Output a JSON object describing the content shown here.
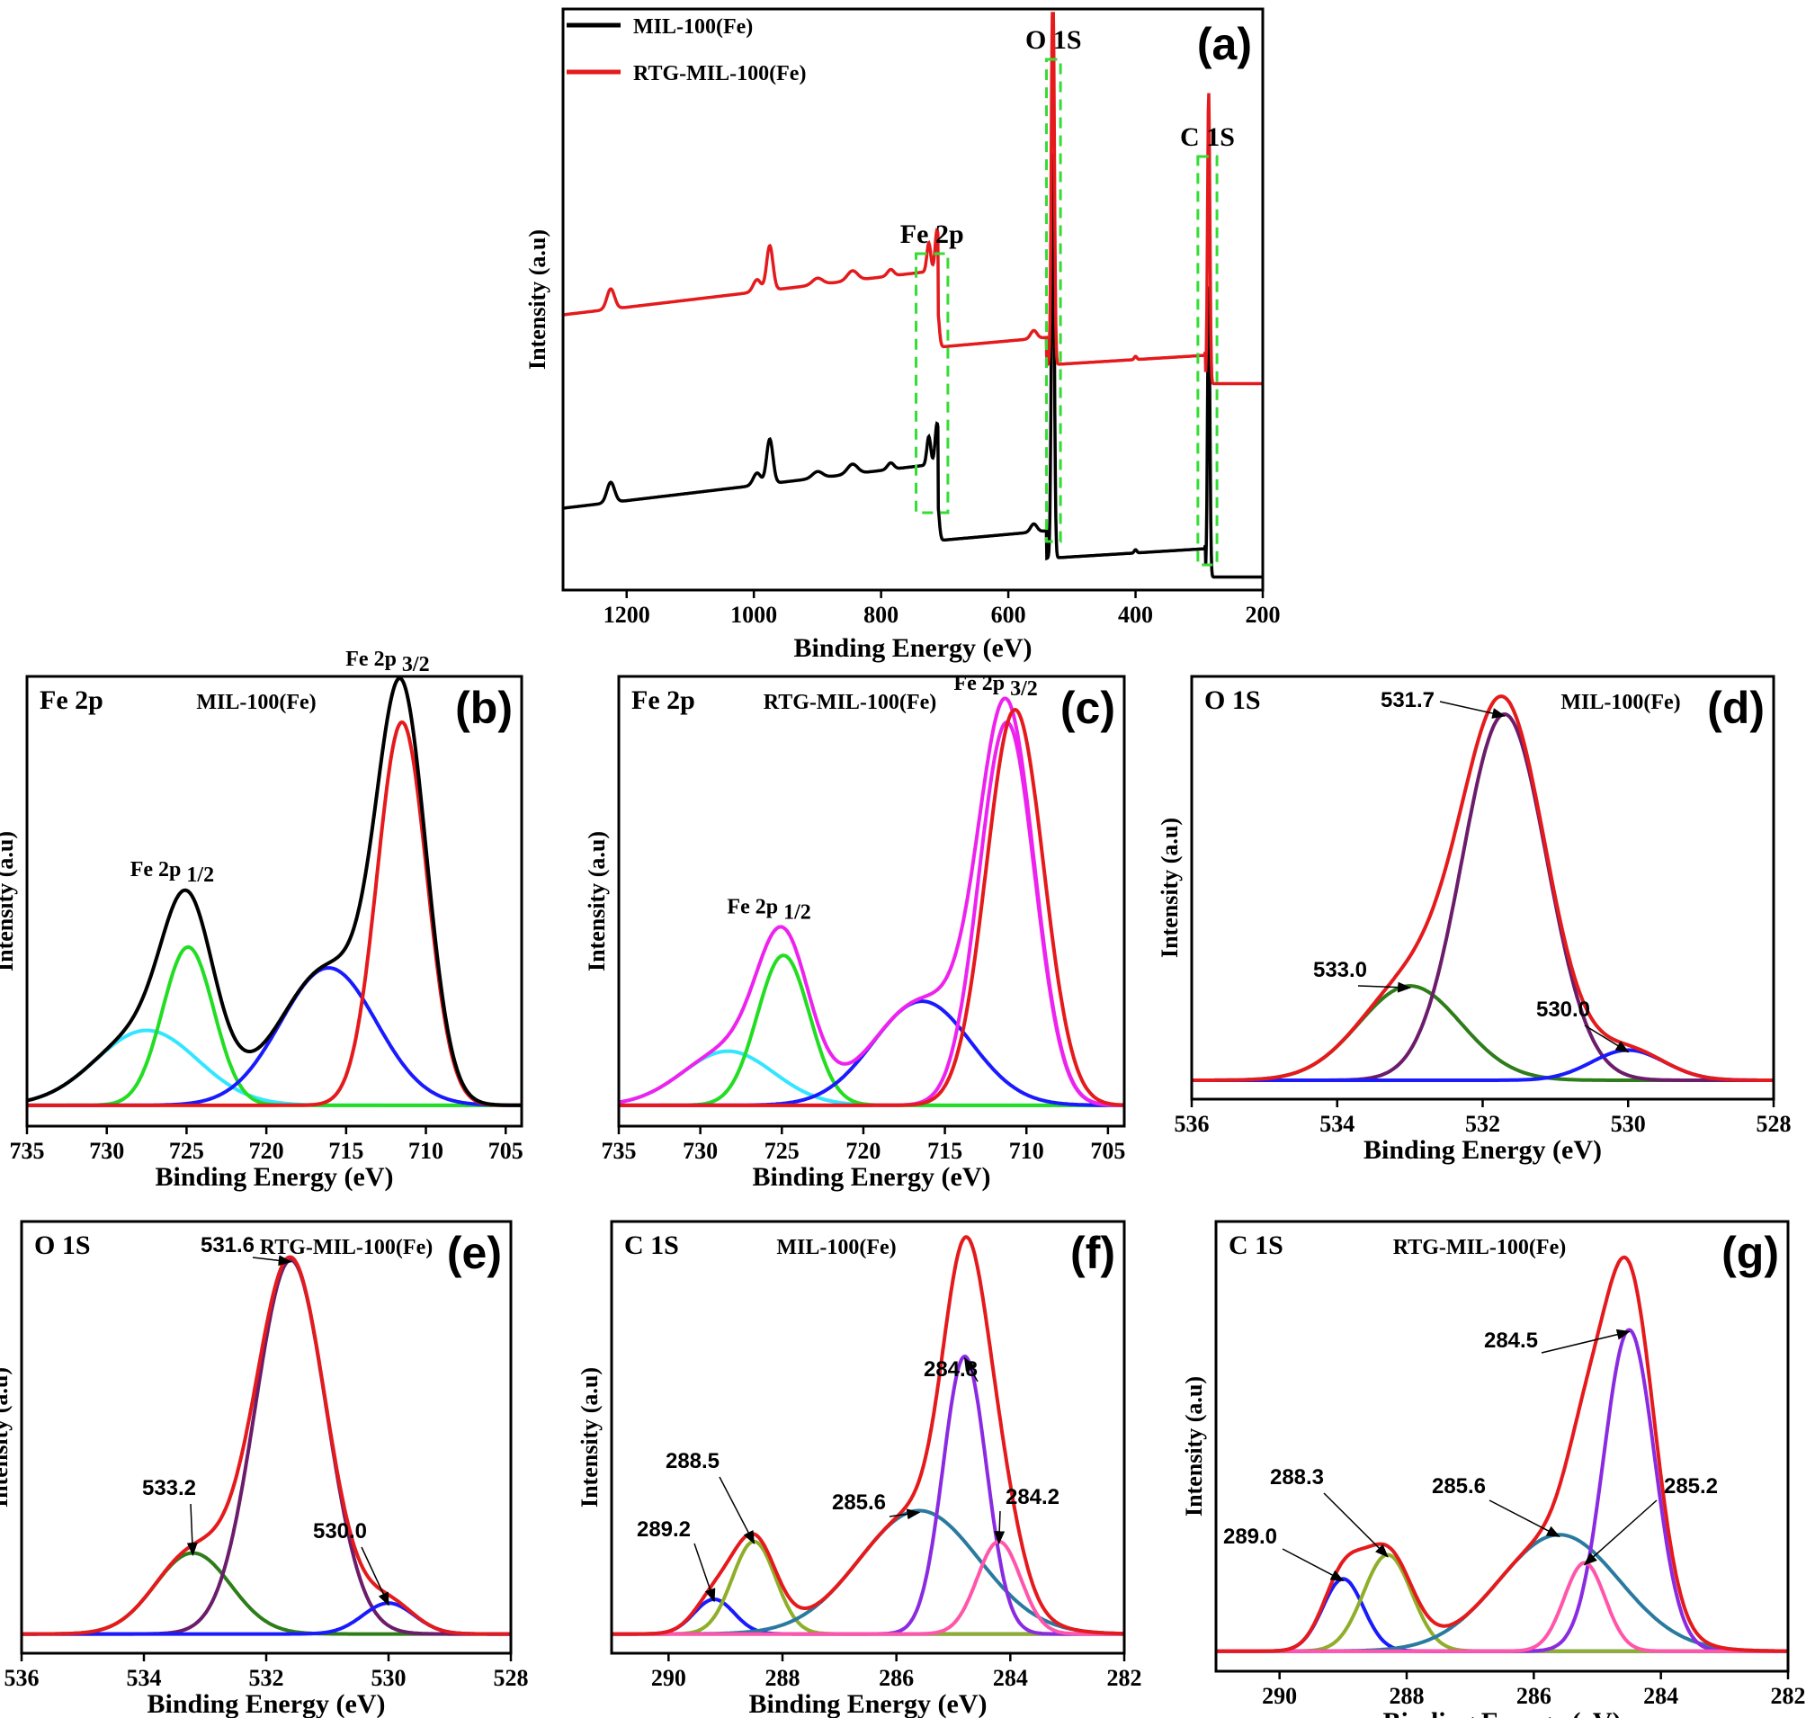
{
  "colors": {
    "black": "#000000",
    "red": "#e41a1c",
    "green": "#22dd22",
    "blue": "#1a1aff",
    "cyan": "#33e6ff",
    "magenta": "#ee22ee",
    "purple": "#6b1d6b",
    "darkgreen": "#2e7d1a",
    "violet": "#8a2be2",
    "olive": "#8fae2a",
    "teal": "#2a7aa0",
    "pink": "#ff55aa",
    "dashgreen": "#33dd33"
  },
  "chart_data": [
    {
      "id": "a",
      "type": "line",
      "panel_label": "(a)",
      "xlabel": "Binding Energy (eV)",
      "ylabel": "Intensity (a.u)",
      "xlim": [
        1300,
        200
      ],
      "xticks": [
        1200,
        1000,
        800,
        600,
        400,
        200
      ],
      "legend": [
        "MIL-100(Fe)",
        "RTG-MIL-100(Fe)"
      ],
      "annotations": [
        {
          "label": "Fe 2p",
          "box": [
            695,
            745
          ]
        },
        {
          "label": "O 1S",
          "box": [
            518,
            540
          ]
        },
        {
          "label": "C 1S",
          "box": [
            272,
            302
          ]
        }
      ],
      "series": [
        {
          "name": "MIL-100(Fe)",
          "color": "#000000",
          "offset": 0
        },
        {
          "name": "RTG-MIL-100(Fe)",
          "color": "#e41a1c",
          "offset": 1.35
        }
      ]
    },
    {
      "id": "b",
      "type": "line",
      "panel_label": "(b)",
      "title": "MIL-100(Fe)",
      "corner": "Fe 2p",
      "xlabel": "Binding Energy (eV)",
      "ylabel": "Intensity (a.u)",
      "xlim": [
        735,
        704
      ],
      "xticks": [
        735,
        730,
        725,
        720,
        715,
        710,
        705
      ],
      "ylim": [
        -0.05,
        1.03
      ],
      "peaks": [
        {
          "label": "Fe 2p",
          "sub": "1/2",
          "x": 725.0
        },
        {
          "label": "Fe 2p",
          "sub": "3/2",
          "x": 711.5
        }
      ],
      "components": [
        {
          "center": 727.5,
          "amp": 0.18,
          "width": 3.2,
          "color": "#33e6ff"
        },
        {
          "center": 724.9,
          "amp": 0.38,
          "width": 1.6,
          "color": "#22dd22"
        },
        {
          "center": 716.1,
          "amp": 0.33,
          "width": 3.0,
          "color": "#1a1aff"
        },
        {
          "center": 711.5,
          "amp": 0.92,
          "width": 1.55,
          "color": "#e41a1c"
        }
      ],
      "envelope_color": "#000000"
    },
    {
      "id": "c",
      "type": "line",
      "panel_label": "(c)",
      "title": "RTG-MIL-100(Fe)",
      "corner": "Fe 2p",
      "xlabel": "Binding Energy (eV)",
      "ylabel": "Intensity (a.u)",
      "xlim": [
        735,
        704
      ],
      "xticks": [
        735,
        730,
        725,
        720,
        715,
        710,
        705
      ],
      "ylim": [
        -0.05,
        1.03
      ],
      "peaks": [
        {
          "label": "Fe 2p",
          "sub": "1/2",
          "x": 724.9
        },
        {
          "label": "Fe 2p",
          "sub": "3/2",
          "x": 711.0
        }
      ],
      "components": [
        {
          "center": 728.3,
          "amp": 0.13,
          "width": 2.8,
          "color": "#33e6ff"
        },
        {
          "center": 724.9,
          "amp": 0.36,
          "width": 1.6,
          "color": "#22dd22"
        },
        {
          "center": 716.4,
          "amp": 0.25,
          "width": 3.0,
          "color": "#1a1aff"
        },
        {
          "center": 711.2,
          "amp": 0.92,
          "width": 1.7,
          "color": "#ee22ee"
        }
      ],
      "envelope_color": "#ee22ee",
      "extra": {
        "center": 710.7,
        "amp": 0.95,
        "width": 1.75,
        "color": "#e41a1c"
      }
    },
    {
      "id": "d",
      "type": "line",
      "panel_label": "(d)",
      "title": "MIL-100(Fe)",
      "corner": "O 1S",
      "xlabel": "Binding Energy (eV)",
      "ylabel": "Intensity (a.u)",
      "xlim": [
        536,
        528
      ],
      "xticks": [
        536,
        534,
        532,
        530,
        528
      ],
      "ylim": [
        -0.05,
        1.07
      ],
      "components": [
        {
          "center": 533.0,
          "amp": 0.25,
          "width": 0.7,
          "color": "#2e7d1a"
        },
        {
          "center": 531.7,
          "amp": 0.97,
          "width": 0.58,
          "color": "#6b1d6b"
        },
        {
          "center": 530.0,
          "amp": 0.08,
          "width": 0.5,
          "color": "#1a1aff"
        }
      ],
      "envelope_color": "#e41a1c",
      "labels": [
        {
          "text": "531.7",
          "x": 531.7
        },
        {
          "text": "533.0",
          "x": 533.0
        },
        {
          "text": "530.0",
          "x": 530.0
        }
      ]
    },
    {
      "id": "e",
      "type": "line",
      "panel_label": "(e)",
      "title": "RTG-MIL-100(Fe)",
      "corner": "O 1S",
      "xlabel": "Binding Energy (eV)",
      "ylabel": "Intensity (a.u)",
      "xlim": [
        536,
        528
      ],
      "xticks": [
        536,
        534,
        532,
        530,
        528
      ],
      "ylim": [
        -0.05,
        1.07
      ],
      "components": [
        {
          "center": 533.2,
          "amp": 0.21,
          "width": 0.62,
          "color": "#2e7d1a"
        },
        {
          "center": 531.6,
          "amp": 0.97,
          "width": 0.58,
          "color": "#6b1d6b"
        },
        {
          "center": 530.0,
          "amp": 0.08,
          "width": 0.42,
          "color": "#1a1aff"
        }
      ],
      "envelope_color": "#e41a1c",
      "labels": [
        {
          "text": "531.6",
          "x": 531.6
        },
        {
          "text": "533.2",
          "x": 533.2
        },
        {
          "text": "530.0",
          "x": 530.0
        }
      ]
    },
    {
      "id": "f",
      "type": "line",
      "panel_label": "(f)",
      "title": "MIL-100(Fe)",
      "corner": "C 1S",
      "xlabel": "Binding Energy (eV)",
      "ylabel": "Intensity (a.u)",
      "xlim": [
        291,
        282
      ],
      "xticks": [
        290,
        288,
        286,
        284,
        282
      ],
      "ylim": [
        -0.05,
        1.07
      ],
      "components": [
        {
          "center": 289.2,
          "amp": 0.09,
          "width": 0.35,
          "color": "#1a1aff"
        },
        {
          "center": 288.5,
          "amp": 0.24,
          "width": 0.38,
          "color": "#8fae2a"
        },
        {
          "center": 285.6,
          "amp": 0.32,
          "width": 1.05,
          "color": "#2a7aa0"
        },
        {
          "center": 284.8,
          "amp": 0.72,
          "width": 0.38,
          "color": "#8a2be2"
        },
        {
          "center": 284.2,
          "amp": 0.24,
          "width": 0.38,
          "color": "#ff55aa"
        }
      ],
      "envelope_color": "#e41a1c",
      "labels": [
        {
          "text": "284.8",
          "x": 284.8
        },
        {
          "text": "288.5",
          "x": 288.5
        },
        {
          "text": "285.6",
          "x": 285.6
        },
        {
          "text": "284.2",
          "x": 284.2
        },
        {
          "text": "289.2",
          "x": 289.2
        }
      ]
    },
    {
      "id": "g",
      "type": "line",
      "panel_label": "(g)",
      "title": "RTG-MIL-100(Fe)",
      "corner": "C 1S",
      "xlabel": "Binding Energy (eV)",
      "ylabel": "Intensity (a.u)",
      "xlim": [
        291,
        282
      ],
      "xticks": [
        290,
        288,
        286,
        284,
        282
      ],
      "ylim": [
        -0.05,
        1.07
      ],
      "components": [
        {
          "center": 289.0,
          "amp": 0.18,
          "width": 0.32,
          "color": "#1a1aff"
        },
        {
          "center": 288.3,
          "amp": 0.24,
          "width": 0.38,
          "color": "#8fae2a"
        },
        {
          "center": 285.6,
          "amp": 0.29,
          "width": 0.95,
          "color": "#2a7aa0"
        },
        {
          "center": 284.5,
          "amp": 0.8,
          "width": 0.4,
          "color": "#8a2be2"
        },
        {
          "center": 285.2,
          "amp": 0.22,
          "width": 0.32,
          "color": "#ff55aa"
        }
      ],
      "envelope_color": "#e41a1c",
      "labels": [
        {
          "text": "284.5",
          "x": 284.5
        },
        {
          "text": "288.3",
          "x": 288.3
        },
        {
          "text": "285.6",
          "x": 285.6
        },
        {
          "text": "285.2",
          "x": 285.2
        },
        {
          "text": "289.0",
          "x": 289.0
        }
      ]
    }
  ]
}
